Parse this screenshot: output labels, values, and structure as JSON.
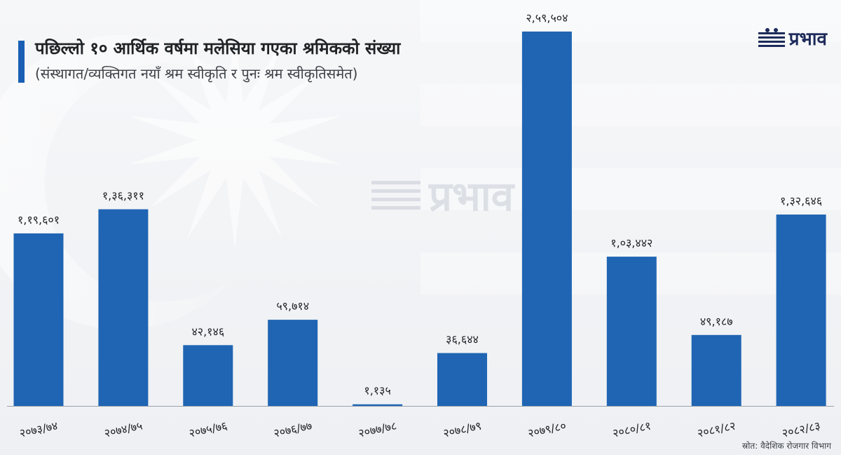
{
  "header": {
    "title": "पछिल्लो १० आर्थिक वर्षमा मलेसिया गएका श्रमिकको संख्या",
    "subtitle": "(संस्थागत/व्यक्तिगत नयाँ श्रम स्वीकृति र पुनः श्रम स्वीकृतिसमेत)"
  },
  "brand": {
    "logo_text": "प्रभाव",
    "watermark_text": "प्रभाव"
  },
  "footer": {
    "source": "स्रोत: वैदेशिक रोजगार विभाग"
  },
  "colors": {
    "bar": "#1f65b3",
    "title_accent": "#1a5fb4",
    "text": "#202326"
  },
  "chart_data": {
    "type": "bar",
    "categories": [
      "२०७३/७४",
      "२०७४/७५",
      "२०७५/७६",
      "२०७६/७७",
      "२०७७/७८",
      "२०७८/७९",
      "२०७९/८०",
      "२०८०/८१",
      "२०८१/८२",
      "२०८२/८३"
    ],
    "values": [
      119601,
      136311,
      42146,
      59714,
      1135,
      36644,
      259504,
      103442,
      49187,
      132646
    ],
    "value_labels": [
      "१,१९,६०१",
      "१,३६,३११",
      "४२,१४६",
      "५९,७१४",
      "१,१३५",
      "३६,६४४",
      "२,५९,५०४",
      "१,०३,४४२",
      "४९,१८७",
      "१,३२,६४६"
    ],
    "title": "पछिल्लो १० आर्थिक वर्षमा मलेसिया गएका श्रमिकको संख्या",
    "xlabel": "",
    "ylabel": "",
    "ylim": [
      0,
      259504
    ],
    "grid": false,
    "legend": "none"
  }
}
